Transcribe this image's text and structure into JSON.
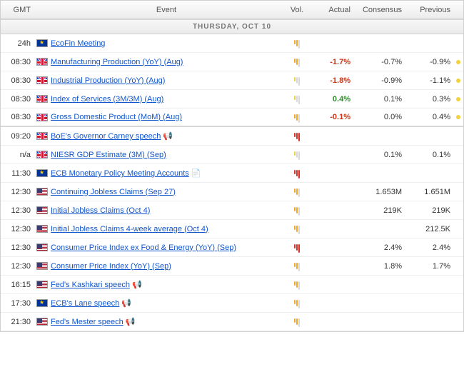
{
  "header": {
    "gmt": "GMT",
    "event": "Event",
    "vol": "Vol.",
    "actual": "Actual",
    "consensus": "Consensus",
    "previous": "Previous"
  },
  "date_label": "THURSDAY, OCT 10",
  "colors": {
    "neg": "#cc3315",
    "pos": "#2e8b2e",
    "link": "#1155cc",
    "vol_red": "#d93025",
    "vol_orange": "#f5a623",
    "vol_yellow": "#f3d23b",
    "vol_off": "#d9d9d9",
    "dot": "#f3d23b"
  },
  "rows": [
    {
      "time": "24h",
      "flag": "eu",
      "event": "EcoFin Meeting",
      "vol": 2,
      "vol_color": "o",
      "actual": "",
      "actual_cls": "",
      "consensus": "",
      "previous": "",
      "dot": false,
      "ext": "",
      "group_end": false
    },
    {
      "time": "08:30",
      "flag": "uk",
      "event": "Manufacturing Production (YoY) (Aug)",
      "vol": 2,
      "vol_color": "o",
      "actual": "-1.7%",
      "actual_cls": "neg",
      "consensus": "-0.7%",
      "previous": "-0.9%",
      "dot": true,
      "ext": "",
      "group_end": false
    },
    {
      "time": "08:30",
      "flag": "uk",
      "event": "Industrial Production (YoY) (Aug)",
      "vol": 1,
      "vol_color": "y",
      "actual": "-1.8%",
      "actual_cls": "neg",
      "consensus": "-0.9%",
      "previous": "-1.1%",
      "dot": true,
      "ext": "",
      "group_end": false
    },
    {
      "time": "08:30",
      "flag": "uk",
      "event": "Index of Services (3M/3M) (Aug)",
      "vol": 1,
      "vol_color": "y",
      "actual": "0.4%",
      "actual_cls": "pos",
      "consensus": "0.1%",
      "previous": "0.3%",
      "dot": true,
      "ext": "",
      "group_end": false
    },
    {
      "time": "08:30",
      "flag": "uk",
      "event": "Gross Domestic Product (MoM) (Aug)",
      "vol": 2,
      "vol_color": "o",
      "actual": "-0.1%",
      "actual_cls": "neg",
      "consensus": "0.0%",
      "previous": "0.4%",
      "dot": true,
      "ext": "",
      "group_end": true
    },
    {
      "time": "09:20",
      "flag": "uk",
      "event": "BoE's Governor Carney speech",
      "vol": 3,
      "vol_color": "r",
      "actual": "",
      "actual_cls": "",
      "consensus": "",
      "previous": "",
      "dot": false,
      "ext": "speech",
      "group_end": false
    },
    {
      "time": "n/a",
      "flag": "uk",
      "event": "NIESR GDP Estimate (3M) (Sep)",
      "vol": 1,
      "vol_color": "y",
      "actual": "",
      "actual_cls": "",
      "consensus": "0.1%",
      "previous": "0.1%",
      "dot": false,
      "ext": "",
      "group_end": false
    },
    {
      "time": "11:30",
      "flag": "eu",
      "event": "ECB Monetary Policy Meeting Accounts",
      "vol": 3,
      "vol_color": "r",
      "actual": "",
      "actual_cls": "",
      "consensus": "",
      "previous": "",
      "dot": false,
      "ext": "doc",
      "group_end": false
    },
    {
      "time": "12:30",
      "flag": "us",
      "event": "Continuing Jobless Claims (Sep 27)",
      "vol": 2,
      "vol_color": "o",
      "actual": "",
      "actual_cls": "",
      "consensus": "1.653M",
      "previous": "1.651M",
      "dot": false,
      "ext": "",
      "group_end": false
    },
    {
      "time": "12:30",
      "flag": "us",
      "event": "Initial Jobless Claims (Oct 4)",
      "vol": 2,
      "vol_color": "o",
      "actual": "",
      "actual_cls": "",
      "consensus": "219K",
      "previous": "219K",
      "dot": false,
      "ext": "",
      "group_end": false
    },
    {
      "time": "12:30",
      "flag": "us",
      "event": "Initial Jobless Claims 4-week average (Oct 4)",
      "vol": 2,
      "vol_color": "o",
      "actual": "",
      "actual_cls": "",
      "consensus": "",
      "previous": "212.5K",
      "dot": false,
      "ext": "",
      "group_end": false
    },
    {
      "time": "12:30",
      "flag": "us",
      "event": "Consumer Price Index ex Food & Energy (YoY) (Sep)",
      "vol": 3,
      "vol_color": "r",
      "actual": "",
      "actual_cls": "",
      "consensus": "2.4%",
      "previous": "2.4%",
      "dot": false,
      "ext": "",
      "group_end": false
    },
    {
      "time": "12:30",
      "flag": "us",
      "event": "Consumer Price Index (YoY) (Sep)",
      "vol": 2,
      "vol_color": "o",
      "actual": "",
      "actual_cls": "",
      "consensus": "1.8%",
      "previous": "1.7%",
      "dot": false,
      "ext": "",
      "group_end": false
    },
    {
      "time": "16:15",
      "flag": "us",
      "event": "Fed's Kashkari speech",
      "vol": 2,
      "vol_color": "o",
      "actual": "",
      "actual_cls": "",
      "consensus": "",
      "previous": "",
      "dot": false,
      "ext": "speech",
      "group_end": false
    },
    {
      "time": "17:30",
      "flag": "eu",
      "event": "ECB's Lane speech",
      "vol": 2,
      "vol_color": "o",
      "actual": "",
      "actual_cls": "",
      "consensus": "",
      "previous": "",
      "dot": false,
      "ext": "speech",
      "group_end": false
    },
    {
      "time": "21:30",
      "flag": "us",
      "event": "Fed's Mester speech",
      "vol": 2,
      "vol_color": "o",
      "actual": "",
      "actual_cls": "",
      "consensus": "",
      "previous": "",
      "dot": false,
      "ext": "speech",
      "group_end": false
    }
  ]
}
